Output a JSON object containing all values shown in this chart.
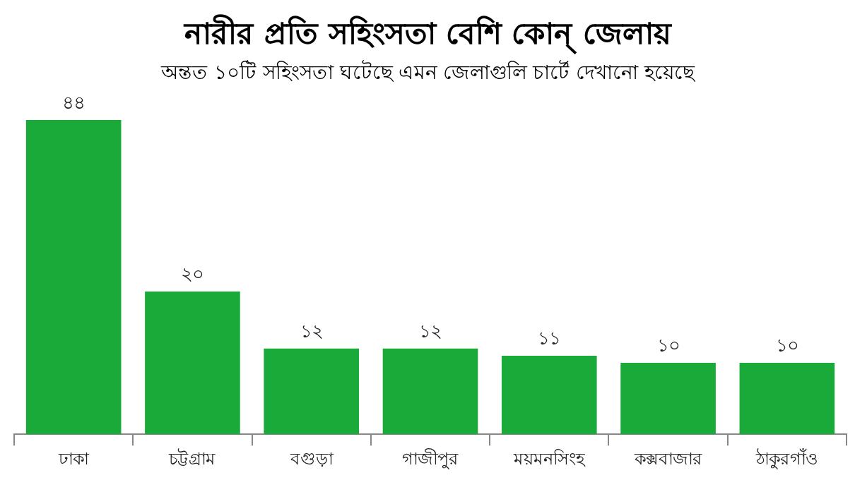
{
  "chart_data": {
    "type": "bar",
    "title": "নারীর প্রতি সহিংসতা বেশি কোন্ জেলায়",
    "subtitle": "অন্তত ১০টি সহিংসতা ঘটেছে এমন জেলাগুলি চার্টে দেখানো হয়েছে",
    "categories": [
      "ঢাকা",
      "চট্টগ্রাম",
      "বগুড়া",
      "গাজীপুর",
      "ময়মনসিংহ",
      "কক্সবাজার",
      "ঠাকুরগাঁও"
    ],
    "values": [
      44,
      20,
      12,
      12,
      11,
      10,
      10
    ],
    "value_labels": [
      "৪৪",
      "২০",
      "১২",
      "১২",
      "১১",
      "১০",
      "১০"
    ],
    "color": "#1aaa3a",
    "grid": false,
    "legend": false
  }
}
